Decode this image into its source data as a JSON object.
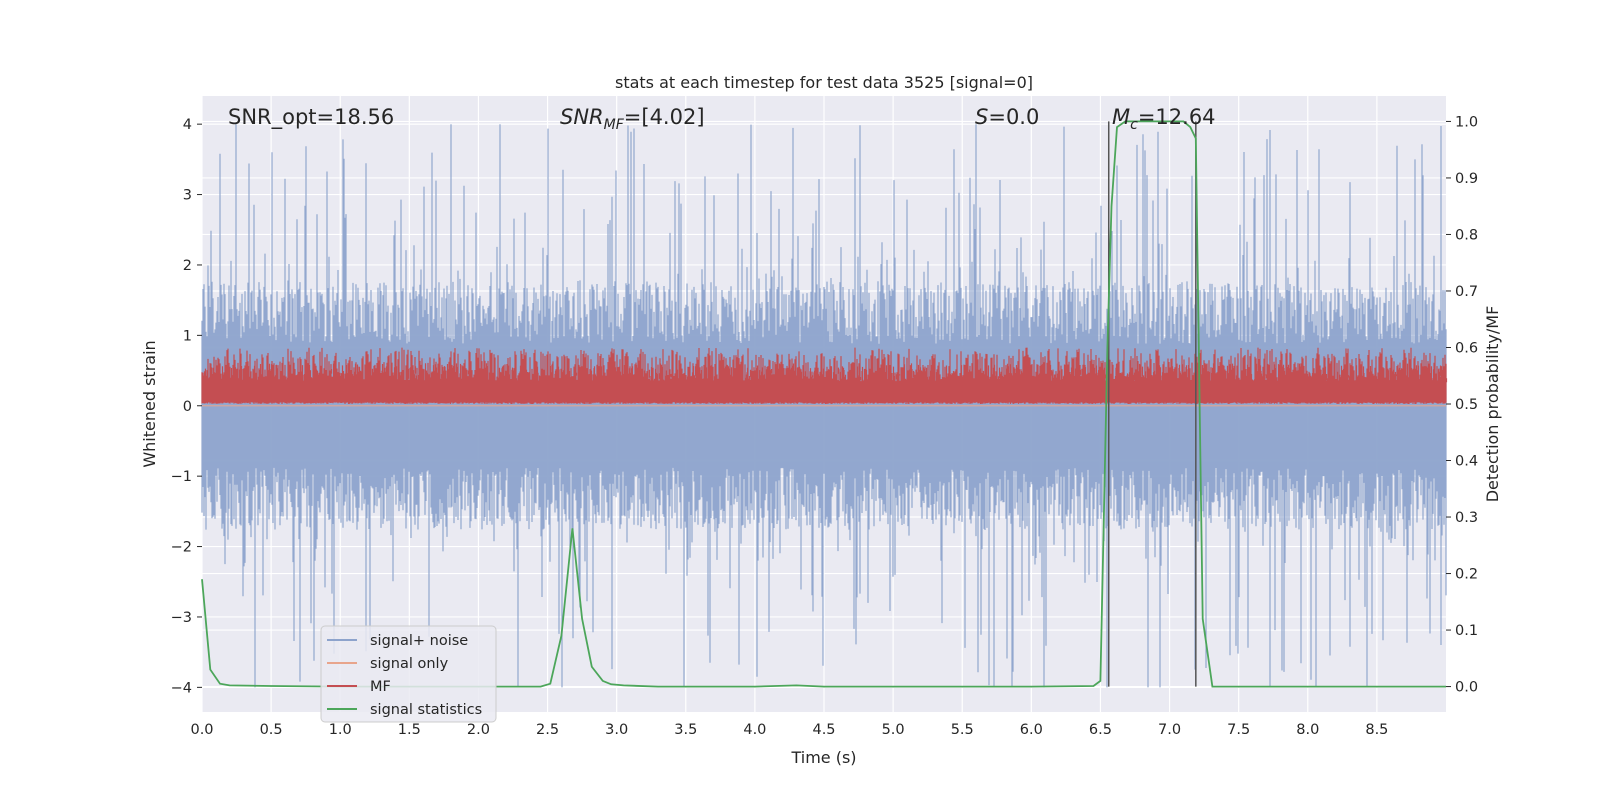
{
  "chart_data": {
    "type": "line",
    "title": "stats at each timestep for test data 3525 [signal=0]",
    "xlabel": "Time (s)",
    "ylabel": "Whitened strain",
    "ylabel_right": "Detection probability/MF",
    "xlim": [
      0.0,
      9.0
    ],
    "ylim": [
      -4.35,
      4.4
    ],
    "ylim_right": [
      -0.045,
      1.045
    ],
    "xticks": [
      "0.0",
      "0.5",
      "1.0",
      "1.5",
      "2.0",
      "2.5",
      "3.0",
      "3.5",
      "4.0",
      "4.5",
      "5.0",
      "5.5",
      "6.0",
      "6.5",
      "7.0",
      "7.5",
      "8.0",
      "8.5"
    ],
    "yticks": [
      "−4",
      "−3",
      "−2",
      "−1",
      "0",
      "1",
      "2",
      "3",
      "4"
    ],
    "yticks_right": [
      "0.0",
      "0.1",
      "0.2",
      "0.3",
      "0.4",
      "0.5",
      "0.6",
      "0.7",
      "0.8",
      "0.9",
      "1.0"
    ],
    "grid": true,
    "legend_placement": "lower-left",
    "annotations": [
      {
        "id": "snr-opt",
        "text": "SNR_opt=18.56"
      },
      {
        "id": "snr-mf",
        "text": "SNR",
        "sub": "MF",
        "tail": "=[4.02]"
      },
      {
        "id": "s-value",
        "text": "S",
        "tail": "=0.0"
      },
      {
        "id": "mc-value",
        "text": "M",
        "sub": "c",
        "tail": "=12.64"
      }
    ],
    "vertical_lines": [
      6.56,
      7.19
    ],
    "series": [
      {
        "name": "signal+ noise",
        "color": "#8da3cc",
        "axis": "left",
        "kind": "noise",
        "envelope": {
          "typical": 1.6,
          "peak": 4.0
        }
      },
      {
        "name": "signal only",
        "color": "#e8a58c",
        "axis": "left",
        "kind": "flat",
        "value": 0.0
      },
      {
        "name": "MF",
        "color": "#c44e52",
        "axis": "right",
        "kind": "band",
        "range": [
          0.5,
          0.59
        ]
      },
      {
        "name": "signal statistics",
        "color": "#4ca65a",
        "axis": "right",
        "kind": "line",
        "x": [
          0.0,
          0.06,
          0.13,
          0.2,
          0.5,
          1.0,
          2.0,
          2.45,
          2.52,
          2.6,
          2.68,
          2.75,
          2.82,
          2.9,
          2.96,
          3.05,
          3.3,
          4.0,
          4.3,
          4.5,
          5.0,
          6.0,
          6.45,
          6.5,
          6.55,
          6.58,
          6.62,
          6.68,
          6.75,
          7.0,
          7.1,
          7.15,
          7.19,
          7.24,
          7.31,
          7.4,
          8.0,
          9.0
        ],
        "y": [
          0.19,
          0.03,
          0.005,
          0.002,
          0.001,
          0.0,
          0.0,
          0.0,
          0.005,
          0.09,
          0.28,
          0.12,
          0.035,
          0.01,
          0.004,
          0.002,
          0.0,
          0.0,
          0.002,
          0.0,
          0.0,
          0.0,
          0.001,
          0.01,
          0.6,
          0.85,
          0.99,
          1.0,
          1.0,
          1.0,
          1.0,
          0.99,
          0.97,
          0.12,
          0.0,
          0.0,
          0.0,
          0.0
        ]
      }
    ]
  }
}
